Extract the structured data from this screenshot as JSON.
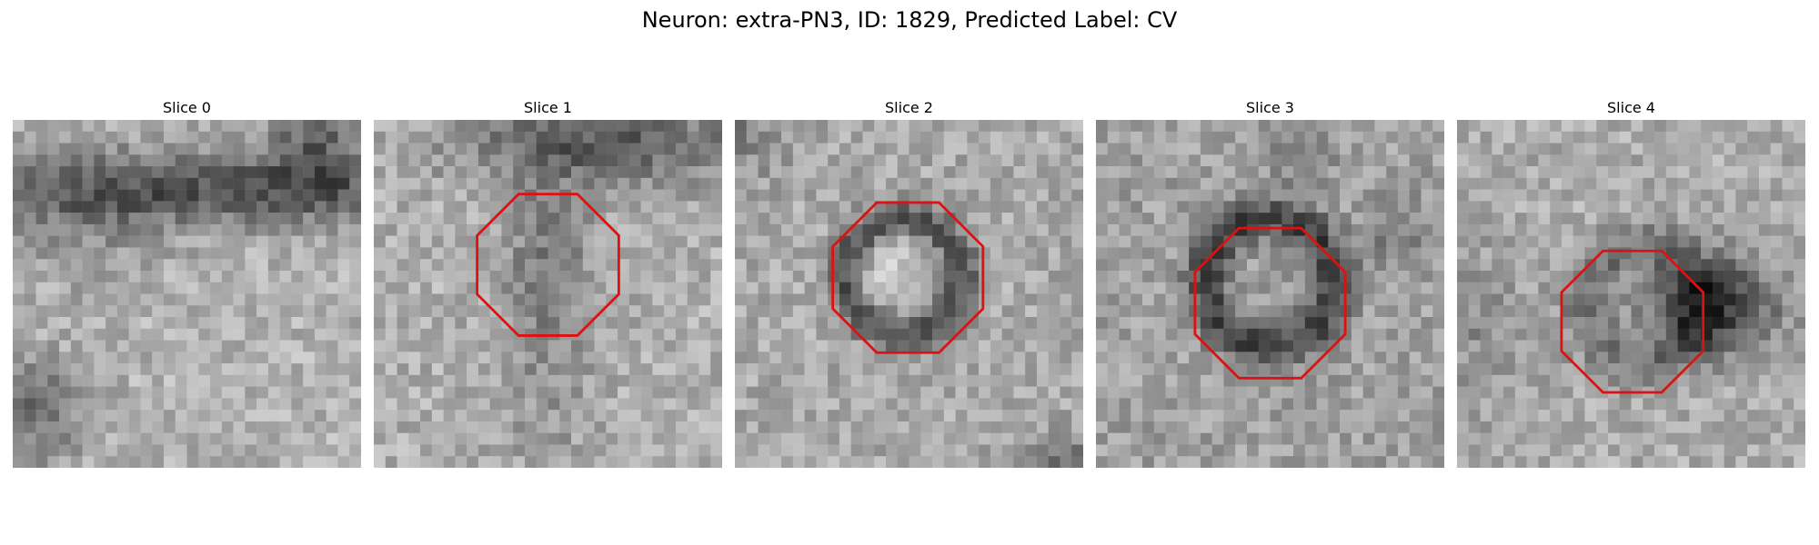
{
  "figure": {
    "suptitle": "Neuron: extra-PN3, ID: 1829, Predicted Label: CV"
  },
  "slices": [
    {
      "title": "Slice 0",
      "has_contour": false
    },
    {
      "title": "Slice 1",
      "has_contour": true
    },
    {
      "title": "Slice 2",
      "has_contour": true
    },
    {
      "title": "Slice 3",
      "has_contour": true
    },
    {
      "title": "Slice 4",
      "has_contour": true
    }
  ],
  "colors": {
    "contour": "#e01010"
  }
}
